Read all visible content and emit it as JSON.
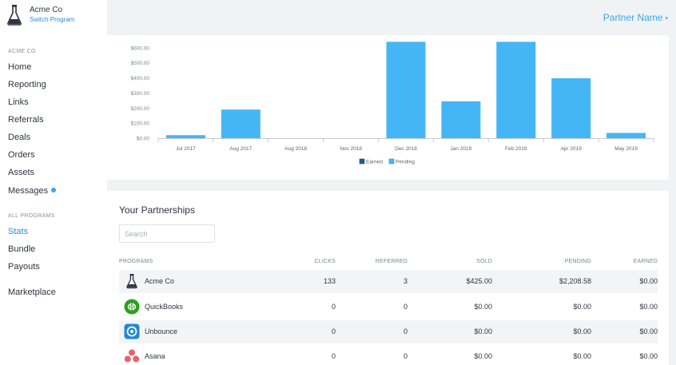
{
  "brand": {
    "name": "Acme Co",
    "switch_label": "Switch Program"
  },
  "header": {
    "partner_name": "Partner Name",
    "caret": "▾"
  },
  "sidebar": {
    "section_company": "ACME CO",
    "company_items": [
      {
        "label": "Home"
      },
      {
        "label": "Reporting"
      },
      {
        "label": "Links"
      },
      {
        "label": "Referrals"
      },
      {
        "label": "Deals"
      },
      {
        "label": "Orders"
      },
      {
        "label": "Assets"
      },
      {
        "label": "Messages",
        "has_notification_dot": true
      }
    ],
    "section_programs": "ALL PROGRAMS",
    "program_items": [
      {
        "label": "Stats",
        "active": true
      },
      {
        "label": "Bundle"
      },
      {
        "label": "Payouts"
      }
    ],
    "marketplace_label": "Marketplace"
  },
  "chart_data": {
    "type": "bar",
    "categories": [
      "Jul 2017",
      "Aug 2017",
      "Aug 2018",
      "Nov 2018",
      "Dec 2018",
      "Jan 2019",
      "Feb 2019",
      "Apr 2019",
      "May 2019"
    ],
    "series": [
      {
        "name": "Earned",
        "values": [
          0,
          0,
          0,
          0,
          0,
          0,
          0,
          0,
          0
        ],
        "color": "#1e5f8e"
      },
      {
        "name": "Pending",
        "values": [
          20,
          190,
          0,
          0,
          640,
          245,
          640,
          398,
          35
        ],
        "color": "#45b6f5"
      }
    ],
    "y_ticks": [
      "$0.00",
      "$100.00",
      "$200.00",
      "$300.00",
      "$400.00",
      "$500.00",
      "$600.00"
    ],
    "ylim": [
      0,
      610
    ],
    "legend_position": "bottom-center",
    "grid": false
  },
  "partnerships": {
    "title": "Your Partnerships",
    "search_placeholder": "Search",
    "columns": {
      "programs": "PROGRAMS",
      "clicks": "CLICKS",
      "referred": "REFERRED",
      "sold": "SOLD",
      "pending": "PENDING",
      "earned": "EARNED"
    },
    "rows": [
      {
        "name": "Acme Co",
        "icon": "flask-icon",
        "clicks": "133",
        "referred": "3",
        "sold": "$425.00",
        "pending": "$2,208.58",
        "earned": "$0.00"
      },
      {
        "name": "QuickBooks",
        "icon": "quickbooks-icon",
        "clicks": "0",
        "referred": "0",
        "sold": "$0.00",
        "pending": "$0.00",
        "earned": "$0.00"
      },
      {
        "name": "Unbounce",
        "icon": "unbounce-icon",
        "clicks": "0",
        "referred": "0",
        "sold": "$0.00",
        "pending": "$0.00",
        "earned": "$0.00"
      },
      {
        "name": "Asana",
        "icon": "asana-icon",
        "clicks": "0",
        "referred": "0",
        "sold": "$0.00",
        "pending": "$0.00",
        "earned": "$0.00"
      }
    ]
  },
  "colors": {
    "accent": "#2d8fd5",
    "bar_pending": "#45b6f5",
    "bar_earned": "#1e5f8e",
    "quickbooks": "#2ca01c",
    "unbounce": "#1c8ad6",
    "asana": "#e8636f"
  }
}
